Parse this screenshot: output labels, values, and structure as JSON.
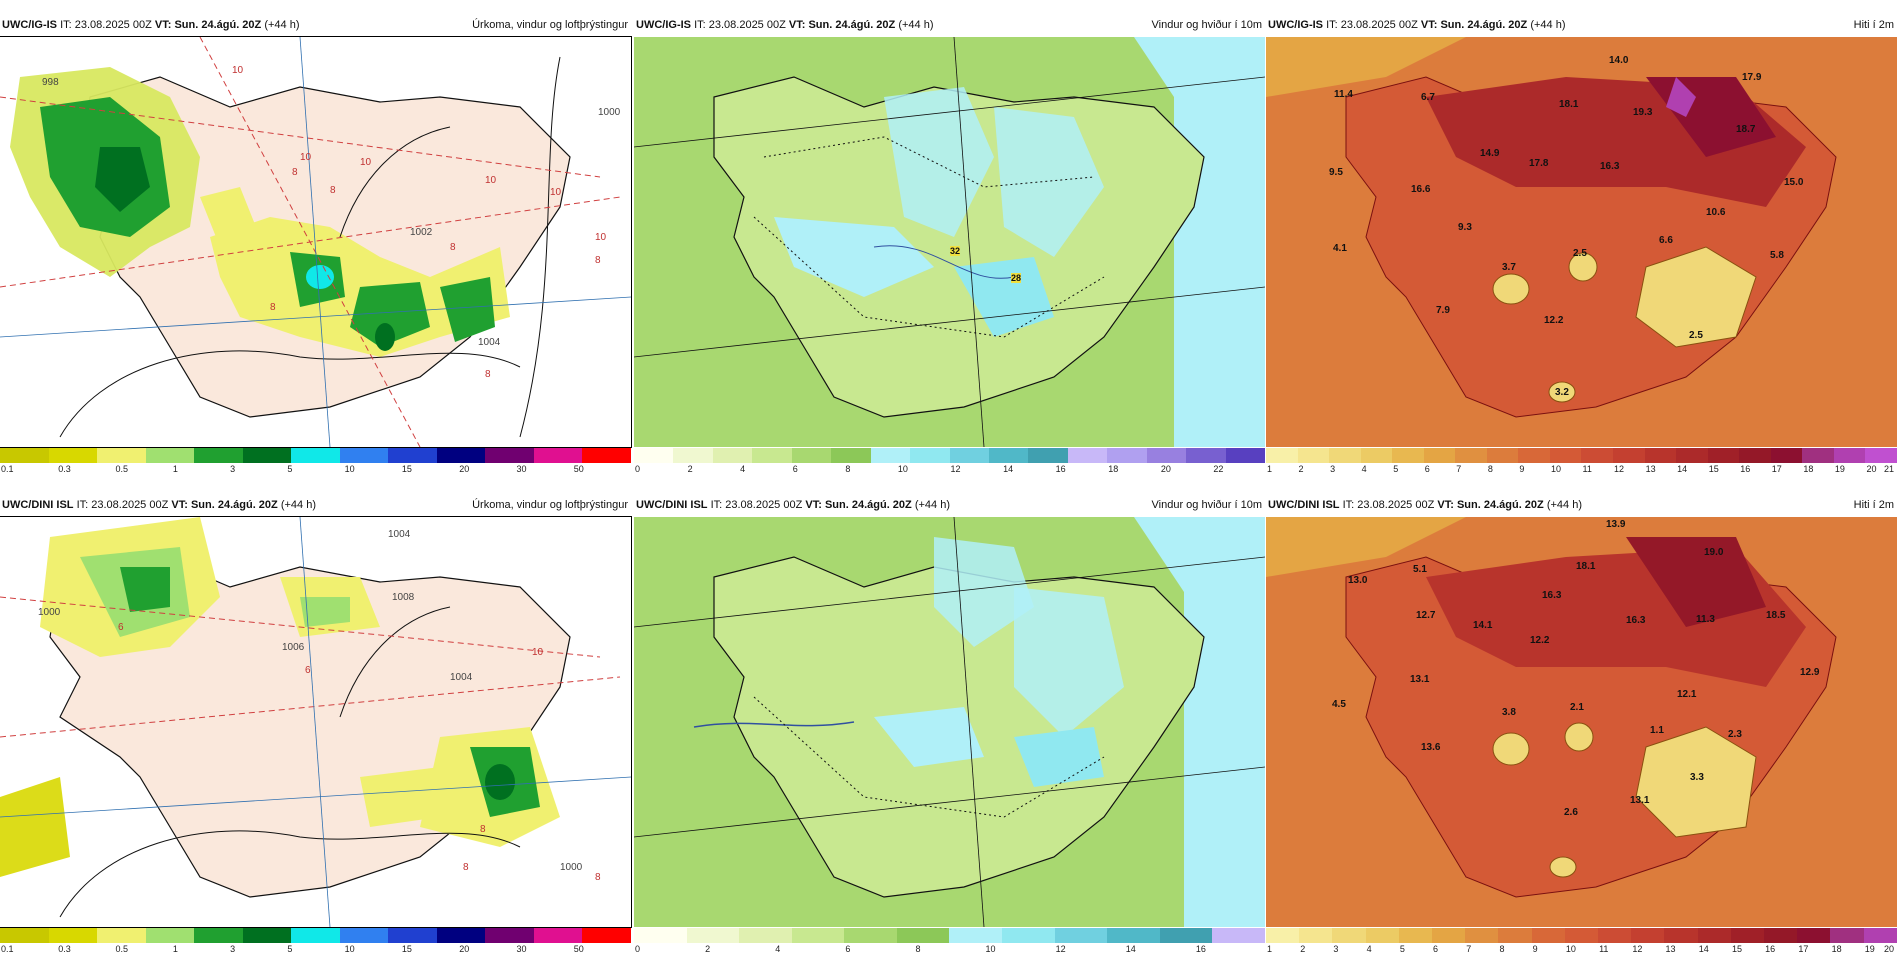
{
  "panels": [
    {
      "model": "UWC/IG-IS",
      "it_label": "IT:",
      "it_value": "23.08.2025 00Z",
      "vt_label": "VT:",
      "vt_value": "Sun. 24.ágú. 20Z",
      "lead": "(+44 h)",
      "field": "Úrkoma, vindur og loftþrýstingur",
      "palette": [
        "#c8c800",
        "#d8d800",
        "#f0f070",
        "#a0e070",
        "#20a030",
        "#007020",
        "#10e8e8",
        "#3080f0",
        "#2040d0",
        "#000080",
        "#700070",
        "#e01090",
        "#ff0000"
      ],
      "ticks": [
        "0.1",
        "0.3",
        "0.5",
        "1",
        "3",
        "5",
        "10",
        "15",
        "20",
        "30",
        "50"
      ],
      "map_labels": [
        "998",
        "10",
        "8",
        "10",
        "10",
        "8",
        "10",
        "1002",
        "8",
        "10",
        "8",
        "8",
        "10",
        "1000",
        "1004",
        "8"
      ]
    },
    {
      "model": "UWC/IG-IS",
      "it_label": "IT:",
      "it_value": "23.08.2025 00Z",
      "vt_label": "VT:",
      "vt_value": "Sun. 24.ágú. 20Z",
      "lead": "(+44 h)",
      "field": "Vindur og hviður í 10m",
      "palette": [
        "#fffff0",
        "#f0f8d0",
        "#e0f0b0",
        "#c8e890",
        "#a8d870",
        "#8cc858",
        "#b0f0f8",
        "#90e8f0",
        "#70d0e0",
        "#50b8c8",
        "#40a0b0",
        "#c8b8f8",
        "#b0a0f0",
        "#9880e0",
        "#7860d0",
        "#5840c0"
      ],
      "ticks": [
        "0",
        "2",
        "4",
        "6",
        "8",
        "10",
        "12",
        "14",
        "16",
        "18",
        "20",
        "22"
      ],
      "map_labels": [
        "32",
        "28"
      ]
    },
    {
      "model": "UWC/IG-IS",
      "it_label": "IT:",
      "it_value": "23.08.2025 00Z",
      "vt_label": "VT:",
      "vt_value": "Sun. 24.ágú. 20Z",
      "lead": "(+44 h)",
      "field": "Hiti í 2m",
      "palette": [
        "#f8f0a8",
        "#f5e58f",
        "#f0d878",
        "#eccb64",
        "#e8b850",
        "#e4a544",
        "#e09040",
        "#dc7c3c",
        "#d86838",
        "#d45a36",
        "#cc4c34",
        "#c44030",
        "#b8342c",
        "#ac2a2a",
        "#a02028",
        "#941828",
        "#8c1030",
        "#a03080",
        "#b040b0",
        "#c050d0"
      ],
      "ticks": [
        "1",
        "2",
        "3",
        "4",
        "5",
        "6",
        "7",
        "8",
        "9",
        "10",
        "11",
        "12",
        "13",
        "14",
        "15",
        "16",
        "17",
        "18",
        "19",
        "20",
        "21"
      ],
      "temps": [
        "14.0",
        "11.4",
        "6.7",
        "18.1",
        "19.3",
        "17.9",
        "9.5",
        "14.9",
        "17.8",
        "16.3",
        "18.7",
        "15.0",
        "16.6",
        "9.3",
        "4.1",
        "3.7",
        "2.5",
        "6.6",
        "10.6",
        "5.8",
        "7.9",
        "12.2",
        "2.5",
        "3.2"
      ]
    },
    {
      "model": "UWC/DINI ISL",
      "it_label": "IT:",
      "it_value": "23.08.2025 00Z",
      "vt_label": "VT:",
      "vt_value": "Sun. 24.ágú. 20Z",
      "lead": "(+44 h)",
      "field": "Úrkoma, vindur og loftþrýstingur",
      "palette": [
        "#c8c800",
        "#d8d800",
        "#f0f070",
        "#a0e070",
        "#20a030",
        "#007020",
        "#10e8e8",
        "#3080f0",
        "#2040d0",
        "#000080",
        "#700070",
        "#e01090",
        "#ff0000"
      ],
      "ticks": [
        "0.1",
        "0.3",
        "0.5",
        "1",
        "3",
        "5",
        "10",
        "15",
        "20",
        "30",
        "50"
      ],
      "map_labels": [
        "1000",
        "6",
        "1004",
        "1008",
        "10",
        "6",
        "1006",
        "8",
        "1004",
        "1000",
        "8",
        "8"
      ]
    },
    {
      "model": "UWC/DINI ISL",
      "it_label": "IT:",
      "it_value": "23.08.2025 00Z",
      "vt_label": "VT:",
      "vt_value": "Sun. 24.ágú. 20Z",
      "lead": "(+44 h)",
      "field": "Vindur og hviður í 10m",
      "palette": [
        "#fffff0",
        "#f0f8d0",
        "#e0f0b0",
        "#c8e890",
        "#a8d870",
        "#8cc858",
        "#b0f0f8",
        "#90e8f0",
        "#70d0e0",
        "#50b8c8",
        "#40a0b0",
        "#c8b8f8"
      ],
      "ticks": [
        "0",
        "2",
        "4",
        "6",
        "8",
        "10",
        "12",
        "14",
        "16"
      ],
      "map_labels": []
    },
    {
      "model": "UWC/DINI ISL",
      "it_label": "IT:",
      "it_value": "23.08.2025 00Z",
      "vt_label": "VT:",
      "vt_value": "Sun. 24.ágú. 20Z",
      "lead": "(+44 h)",
      "field": "Hiti í 2m",
      "palette": [
        "#f8f0a8",
        "#f5e58f",
        "#f0d878",
        "#eccb64",
        "#e8b850",
        "#e4a544",
        "#e09040",
        "#dc7c3c",
        "#d86838",
        "#d45a36",
        "#cc4c34",
        "#c44030",
        "#b8342c",
        "#ac2a2a",
        "#a02028",
        "#941828",
        "#8c1030",
        "#a03080",
        "#b040b0"
      ],
      "ticks": [
        "1",
        "2",
        "3",
        "4",
        "5",
        "6",
        "7",
        "8",
        "9",
        "10",
        "11",
        "12",
        "13",
        "14",
        "15",
        "16",
        "17",
        "18",
        "19",
        "20"
      ],
      "temps": [
        "13.9",
        "19.0",
        "13.0",
        "5.1",
        "18.1",
        "16.3",
        "12.7",
        "14.1",
        "16.3",
        "11.3",
        "18.5",
        "12.2",
        "13.1",
        "12.1",
        "12.9",
        "4.5",
        "3.8",
        "2.1",
        "1.1",
        "2.3",
        "13.6",
        "3.3",
        "13.1",
        "2.6"
      ]
    }
  ]
}
